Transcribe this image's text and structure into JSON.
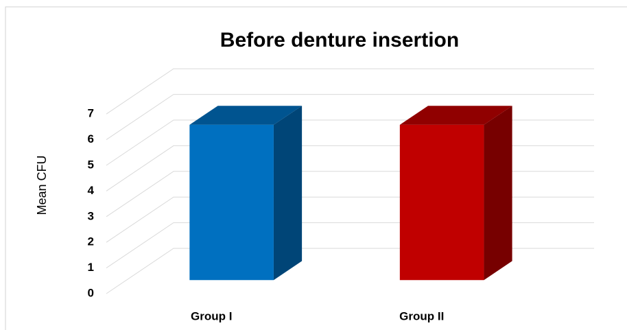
{
  "chart_data": {
    "type": "bar3d",
    "title": "Before denture insertion",
    "y_label": "Mean CFU",
    "categories": [
      "Group I",
      "Group II"
    ],
    "values": [
      6.05,
      6.05
    ],
    "colors": [
      "#0070c0",
      "#c00000"
    ],
    "ylim": [
      0,
      7
    ],
    "yticks": [
      0,
      1,
      2,
      3,
      4,
      5,
      6,
      7
    ],
    "grid": true
  }
}
